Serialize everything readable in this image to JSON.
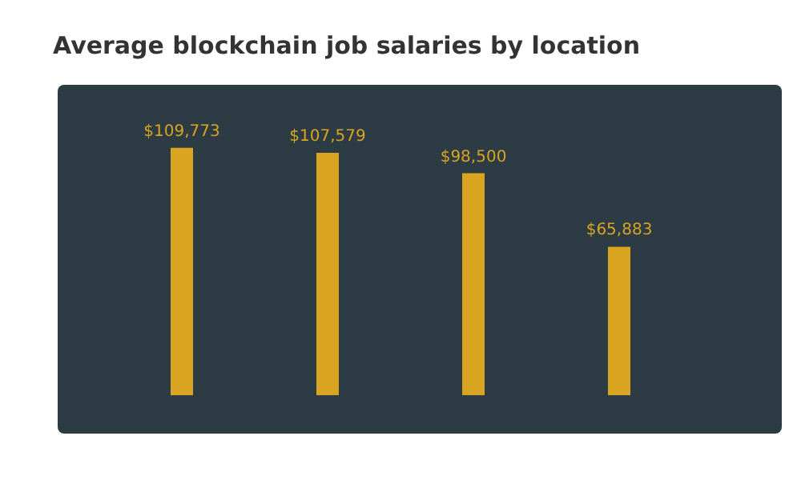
{
  "chart_data": {
    "type": "bar",
    "title": "Average blockchain job salaries by location",
    "categories": [
      null,
      null,
      null,
      null
    ],
    "values": [
      109773,
      107579,
      98500,
      65883
    ],
    "value_labels": [
      "$109,773",
      "$107,579",
      "$98,500",
      "$65,883"
    ],
    "color": "#d9a521"
  }
}
